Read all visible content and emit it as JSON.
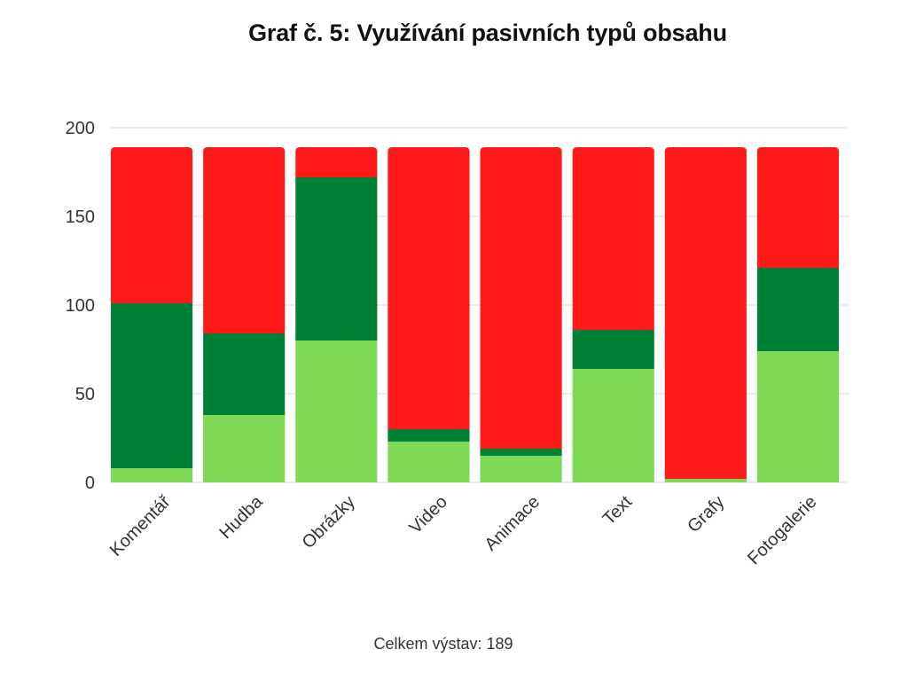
{
  "chart_data": {
    "type": "bar",
    "stacked": true,
    "title": "Graf č. 5: Využívání pasivních typů obsahu",
    "footnote": "Celkem výstav: 189",
    "categories": [
      "Komentář",
      "Hudba",
      "Obrázky",
      "Video",
      "Animace",
      "Text",
      "Grafy",
      "Fotogalerie"
    ],
    "series": [
      {
        "color": "#7ed957",
        "values": [
          8,
          38,
          80,
          23,
          15,
          64,
          2,
          74
        ]
      },
      {
        "color": "#007f37",
        "values": [
          93,
          46,
          92,
          7,
          4,
          22,
          0,
          47
        ]
      },
      {
        "color": "#ff1a1a",
        "values": [
          88,
          105,
          17,
          159,
          170,
          103,
          187,
          68
        ]
      }
    ],
    "yticks": [
      0,
      50,
      100,
      150,
      200
    ],
    "ylim": [
      0,
      200
    ],
    "grid": true,
    "legend": "none"
  }
}
